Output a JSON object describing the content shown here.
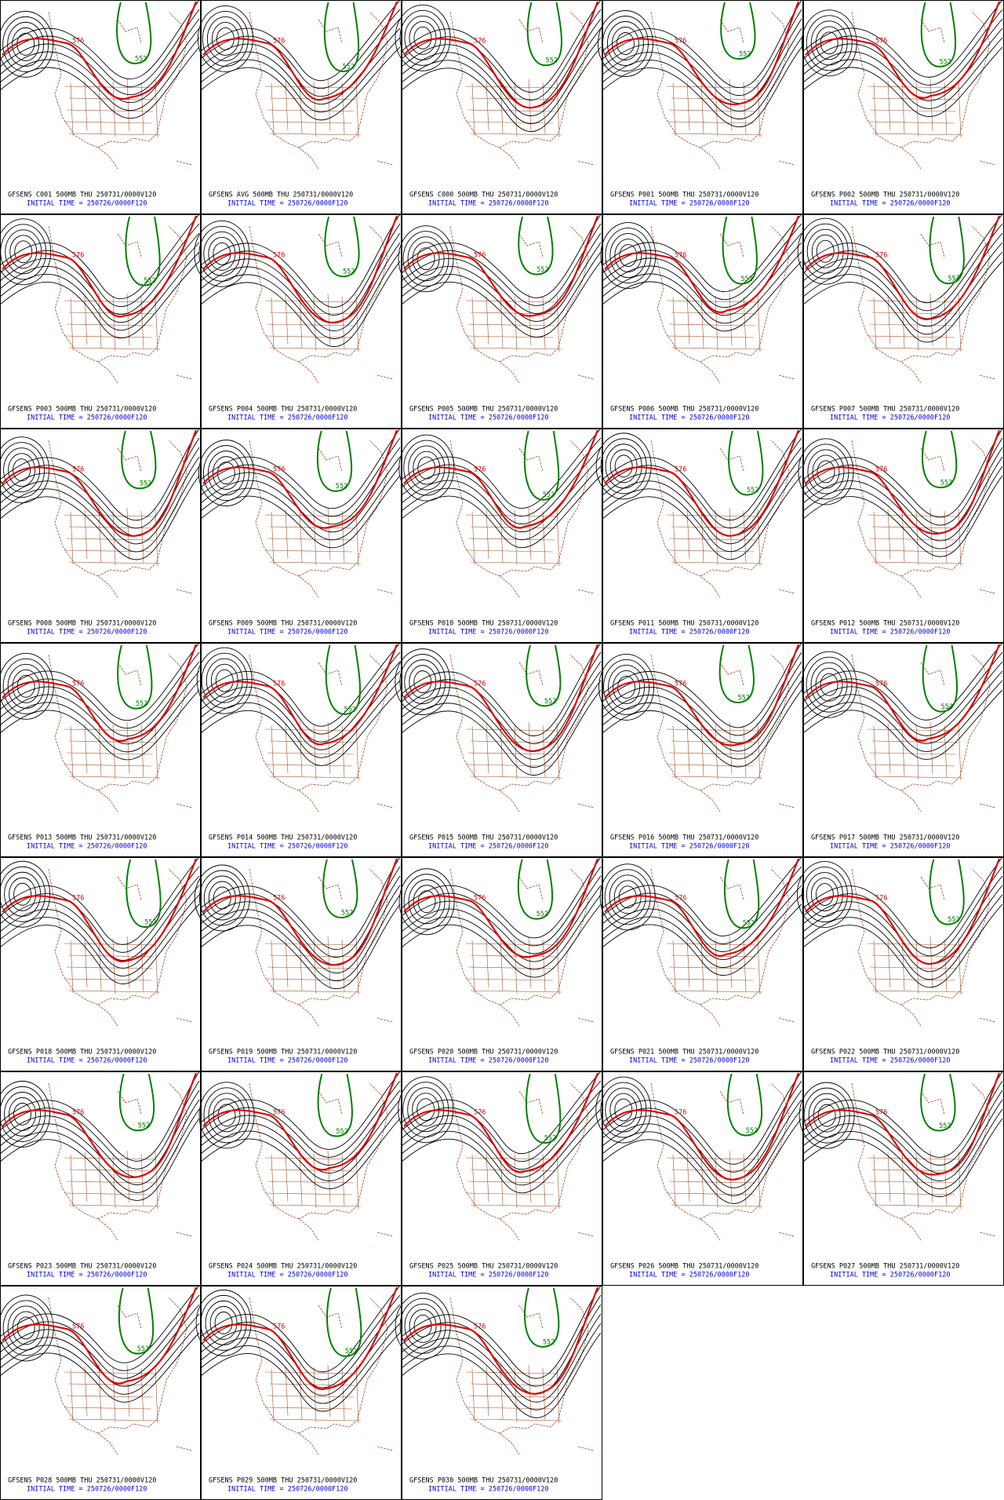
{
  "panels": [
    {
      "title": "GFSENS C001 500MB THU 250731/0000V120",
      "init": "INITIAL TIME = 250726/0000F120",
      "contour_labels": [
        "576",
        "552"
      ]
    },
    {
      "title": "GFSENS AVG 500MB THU 250731/0000V120",
      "init": "INITIAL TIME = 250726/0000F120",
      "contour_labels": [
        "576",
        "552"
      ]
    },
    {
      "title": "GFSENS C000 500MB THU 250731/0000V120",
      "init": "INITIAL TIME = 250726/0000F120",
      "contour_labels": [
        "576",
        "552"
      ]
    },
    {
      "title": "GFSENS P001 500MB THU 250731/0000V120",
      "init": "INITIAL TIME = 250726/0000F120",
      "contour_labels": [
        "576",
        "552"
      ]
    },
    {
      "title": "GFSENS P002 500MB THU 250731/0000V120",
      "init": "INITIAL TIME = 250726/0000F120",
      "contour_labels": [
        "576",
        "552"
      ]
    },
    {
      "title": "GFSENS P003 500MB THU 250731/0000V120",
      "init": "INITIAL TIME = 250726/0000F120",
      "contour_labels": [
        "576",
        "552"
      ]
    },
    {
      "title": "GFSENS P004 500MB THU 250731/0000V120",
      "init": "INITIAL TIME = 250726/0000F120",
      "contour_labels": [
        "576",
        "552"
      ]
    },
    {
      "title": "GFSENS P005 500MB THU 250731/0000V120",
      "init": "INITIAL TIME = 250726/0000F120",
      "contour_labels": [
        "576",
        "552"
      ]
    },
    {
      "title": "GFSENS P006 500MB THU 250731/0000V120",
      "init": "INITIAL TIME = 250726/0000F120",
      "contour_labels": [
        "576",
        "552"
      ]
    },
    {
      "title": "GFSENS P007 500MB THU 250731/0000V120",
      "init": "INITIAL TIME = 250726/0000F120",
      "contour_labels": [
        "576",
        "552"
      ]
    },
    {
      "title": "GFSENS P008 500MB THU 250731/0000V120",
      "init": "INITIAL TIME = 250726/0000F120",
      "contour_labels": [
        "576",
        "552"
      ]
    },
    {
      "title": "GFSENS P009 500MB THU 250731/0000V120",
      "init": "INITIAL TIME = 250726/0000F120",
      "contour_labels": [
        "576",
        "552"
      ]
    },
    {
      "title": "GFSENS P010 500MB THU 250731/0000V120",
      "init": "INITIAL TIME = 250726/0000F120",
      "contour_labels": [
        "576",
        "552"
      ]
    },
    {
      "title": "GFSENS P011 500MB THU 250731/0000V120",
      "init": "INITIAL TIME = 250726/0000F120",
      "contour_labels": [
        "576",
        "552"
      ]
    },
    {
      "title": "GFSENS P012 500MB THU 250731/0000V120",
      "init": "INITIAL TIME = 250726/0000F120",
      "contour_labels": [
        "576",
        "552"
      ]
    },
    {
      "title": "GFSENS P013 500MB THU 250731/0000V120",
      "init": "INITIAL TIME = 250726/0000F120",
      "contour_labels": [
        "576",
        "552"
      ]
    },
    {
      "title": "GFSENS P014 500MB THU 250731/0000V120",
      "init": "INITIAL TIME = 250726/0000F120",
      "contour_labels": [
        "576",
        "552"
      ]
    },
    {
      "title": "GFSENS P015 500MB THU 250731/0000V120",
      "init": "INITIAL TIME = 250726/0000F120",
      "contour_labels": [
        "576",
        "552"
      ]
    },
    {
      "title": "GFSENS P016 500MB THU 250731/0000V120",
      "init": "INITIAL TIME = 250726/0000F120",
      "contour_labels": [
        "576",
        "552"
      ]
    },
    {
      "title": "GFSENS P017 500MB THU 250731/0000V120",
      "init": "INITIAL TIME = 250726/0000F120",
      "contour_labels": [
        "576",
        "552"
      ]
    },
    {
      "title": "GFSENS P018 500MB THU 250731/0000V120",
      "init": "INITIAL TIME = 250726/0000F120",
      "contour_labels": [
        "576",
        "552"
      ]
    },
    {
      "title": "GFSENS P019 500MB THU 250731/0000V120",
      "init": "INITIAL TIME = 250726/0000F120",
      "contour_labels": [
        "576",
        "552"
      ]
    },
    {
      "title": "GFSENS P020 500MB THU 250731/0000V120",
      "init": "INITIAL TIME = 250726/0000F120",
      "contour_labels": [
        "576",
        "552"
      ]
    },
    {
      "title": "GFSENS P021 500MB THU 250731/0000V120",
      "init": "INITIAL TIME = 250726/0000F120",
      "contour_labels": [
        "576",
        "552"
      ]
    },
    {
      "title": "GFSENS P022 500MB THU 250731/0000V120",
      "init": "INITIAL TIME = 250726/0000F120",
      "contour_labels": [
        "576",
        "552"
      ]
    },
    {
      "title": "GFSENS P023 500MB THU 250731/0000V120",
      "init": "INITIAL TIME = 250726/0000F120",
      "contour_labels": [
        "576",
        "552"
      ]
    },
    {
      "title": "GFSENS P024 500MB THU 250731/0000V120",
      "init": "INITIAL TIME = 250726/0000F120",
      "contour_labels": [
        "576",
        "552"
      ]
    },
    {
      "title": "GFSENS P025 500MB THU 250731/0000V120",
      "init": "INITIAL TIME = 250726/0000F120",
      "contour_labels": [
        "576",
        "552"
      ]
    },
    {
      "title": "GFSENS P026 500MB THU 250731/0000V120",
      "init": "INITIAL TIME = 250726/0000F120",
      "contour_labels": [
        "576",
        "552"
      ]
    },
    {
      "title": "GFSENS P027 500MB THU 250731/0000V120",
      "init": "INITIAL TIME = 250726/0000F120",
      "contour_labels": [
        "576",
        "552"
      ]
    },
    {
      "title": "GFSENS P028 500MB THU 250731/0000V120",
      "init": "INITIAL TIME = 250726/0000F120",
      "contour_labels": [
        "576",
        "552"
      ]
    },
    {
      "title": "GFSENS P029 500MB THU 250731/0000V120",
      "init": "INITIAL TIME = 250726/0000F120",
      "contour_labels": [
        "576",
        "552"
      ]
    },
    {
      "title": "GFSENS P030 500MB THU 250731/0000V120",
      "init": "INITIAL TIME = 250726/0000F120",
      "contour_labels": [
        "576",
        "552"
      ]
    }
  ]
}
